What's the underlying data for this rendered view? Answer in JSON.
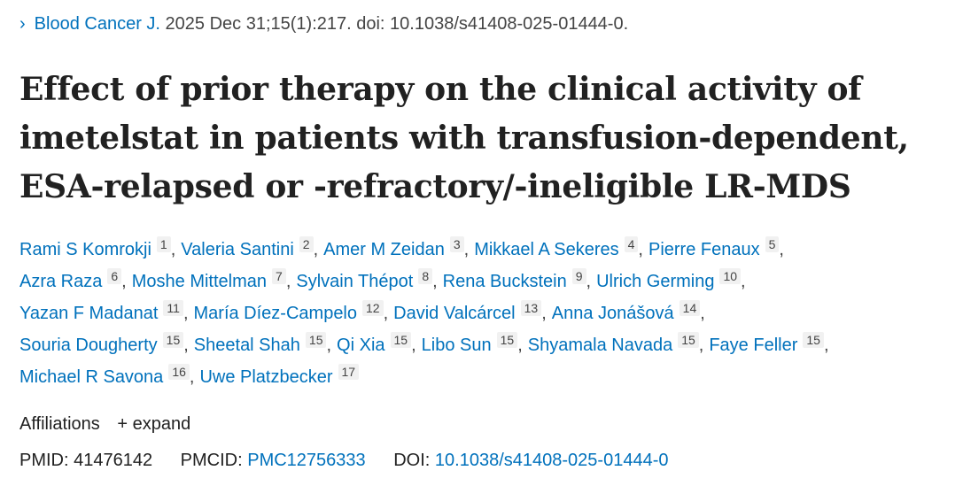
{
  "citation": {
    "journal": "Blood Cancer J.",
    "details": "2025 Dec 31;15(1):217. doi: 10.1038/s41408-025-01444-0."
  },
  "title": "Effect of prior therapy on the clinical activity of imetelstat in patients with transfusion-dependent, ESA-relapsed or -refractory/-ineligible LR-MDS",
  "authors": [
    {
      "name": "Rami S Komrokji",
      "aff": "1"
    },
    {
      "name": "Valeria Santini",
      "aff": "2"
    },
    {
      "name": "Amer M Zeidan",
      "aff": "3"
    },
    {
      "name": "Mikkael A Sekeres",
      "aff": "4"
    },
    {
      "name": "Pierre Fenaux",
      "aff": "5"
    },
    {
      "name": "Azra Raza",
      "aff": "6"
    },
    {
      "name": "Moshe Mittelman",
      "aff": "7"
    },
    {
      "name": "Sylvain Thépot",
      "aff": "8"
    },
    {
      "name": "Rena Buckstein",
      "aff": "9"
    },
    {
      "name": "Ulrich Germing",
      "aff": "10"
    },
    {
      "name": "Yazan F Madanat",
      "aff": "11"
    },
    {
      "name": "María Díez-Campelo",
      "aff": "12"
    },
    {
      "name": "David Valcárcel",
      "aff": "13"
    },
    {
      "name": "Anna Jonášová",
      "aff": "14"
    },
    {
      "name": "Souria Dougherty",
      "aff": "15"
    },
    {
      "name": "Sheetal Shah",
      "aff": "15"
    },
    {
      "name": "Qi Xia",
      "aff": "15"
    },
    {
      "name": "Libo Sun",
      "aff": "15"
    },
    {
      "name": "Shyamala Navada",
      "aff": "15"
    },
    {
      "name": "Faye Feller",
      "aff": "15"
    },
    {
      "name": "Michael R Savona",
      "aff": "16"
    },
    {
      "name": "Uwe Platzbecker",
      "aff": "17"
    }
  ],
  "affiliations": {
    "label": "Affiliations",
    "expand": "+ expand"
  },
  "ids": {
    "pmid_label": "PMID:",
    "pmid": "41476142",
    "pmcid_label": "PMCID:",
    "pmcid": "PMC12756333",
    "doi_label": "DOI:",
    "doi": "10.1038/s41408-025-01444-0"
  },
  "colors": {
    "link": "#0071bc",
    "text": "#212121"
  }
}
